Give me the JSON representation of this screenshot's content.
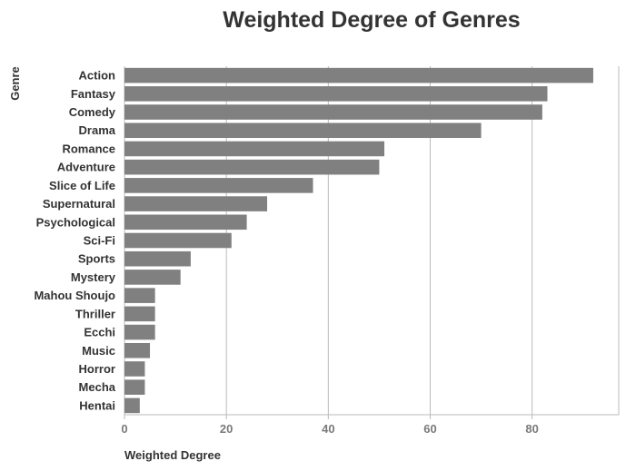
{
  "chart_data": {
    "type": "bar",
    "orientation": "horizontal",
    "title": "Weighted Degree of Genres",
    "xlabel": "Weighted Degree",
    "ylabel": "Genre",
    "categories": [
      "Action",
      "Fantasy",
      "Comedy",
      "Drama",
      "Romance",
      "Adventure",
      "Slice of Life",
      "Supernatural",
      "Psychological",
      "Sci-Fi",
      "Sports",
      "Mystery",
      "Mahou Shoujo",
      "Thriller",
      "Ecchi",
      "Music",
      "Horror",
      "Mecha",
      "Hentai"
    ],
    "values": [
      92,
      83,
      82,
      70,
      51,
      50,
      37,
      28,
      24,
      21,
      13,
      11,
      6,
      6,
      6,
      5,
      4,
      4,
      3
    ],
    "xlim": [
      0,
      97
    ],
    "xticks": [
      0,
      20,
      40,
      60,
      80
    ],
    "grid": "vertical",
    "legend": "none",
    "colors": {
      "bar": "#808080",
      "grid": "#bbbbbb",
      "axis": "#bbbbbb"
    }
  }
}
